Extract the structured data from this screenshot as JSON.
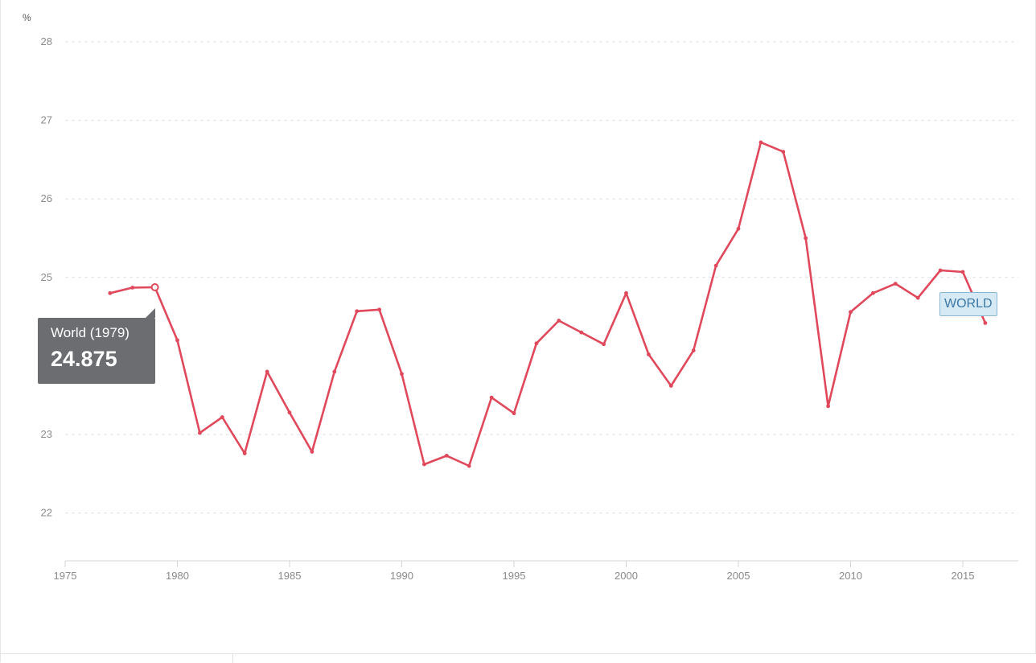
{
  "chart_data": {
    "type": "line",
    "unit_label": "%",
    "xlim": [
      1975,
      2016
    ],
    "ylim": [
      21.5,
      28
    ],
    "x_ticks": [
      1975,
      1980,
      1985,
      1990,
      1995,
      2000,
      2005,
      2010,
      2015
    ],
    "y_ticks": [
      22,
      23,
      25,
      26,
      27,
      28
    ],
    "grid": true,
    "series": [
      {
        "name": "WORLD",
        "color": "#e0485b",
        "x": [
          1977,
          1978,
          1979,
          1980,
          1981,
          1982,
          1983,
          1984,
          1985,
          1986,
          1987,
          1988,
          1989,
          1990,
          1991,
          1992,
          1993,
          1994,
          1995,
          1996,
          1997,
          1998,
          1999,
          2000,
          2001,
          2002,
          2003,
          2004,
          2005,
          2006,
          2007,
          2008,
          2009,
          2010,
          2011,
          2012,
          2013,
          2014,
          2015,
          2016
        ],
        "y": [
          24.8,
          24.87,
          24.875,
          24.2,
          23.02,
          23.22,
          22.76,
          23.8,
          23.28,
          22.78,
          23.8,
          24.57,
          24.59,
          23.77,
          22.62,
          22.73,
          22.6,
          23.47,
          23.27,
          24.16,
          24.45,
          24.3,
          24.15,
          24.8,
          24.02,
          23.62,
          24.07,
          25.15,
          25.62,
          26.72,
          26.6,
          25.5,
          23.36,
          24.56,
          24.8,
          24.92,
          24.74,
          25.09,
          25.07,
          24.42
        ]
      }
    ],
    "tooltip": {
      "title": "World (1979)",
      "value": "24.875",
      "x": 1979,
      "y": 24.875
    },
    "series_tag": "WORLD"
  }
}
